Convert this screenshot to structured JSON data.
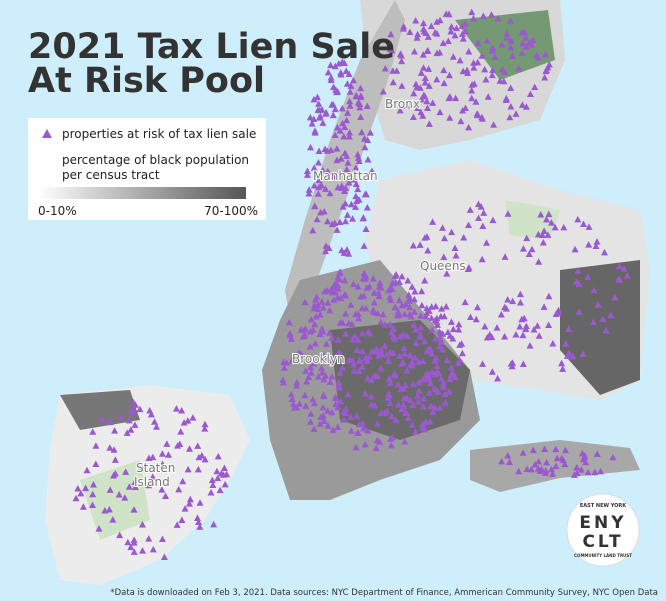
{
  "title": {
    "lines": [
      "2021 Tax Lien Sale",
      "At Risk Pool"
    ]
  },
  "legend": {
    "marker_label": "properties at risk of tax lien sale",
    "shading_label": [
      "percentage of black population",
      "per census tract"
    ],
    "scale_low": "0-10%",
    "scale_high": "70-100%"
  },
  "places": [
    {
      "label": "Bronx"
    },
    {
      "label": "Manhattan"
    },
    {
      "label": "Queens"
    },
    {
      "label": "Brooklyn"
    },
    {
      "label": "Staten"
    },
    {
      "label": "Island"
    }
  ],
  "logo": {
    "top": "EAST NEW YORK",
    "line1": "ENY",
    "line2": "CLT",
    "bottom": "COMMUNITY LAND TRUST"
  },
  "footnote": "*Data is downloaded on Feb 3, 2021. Data sources: NYC Department of Finance,  Ammerican Community Survey, NYC Open Data"
}
